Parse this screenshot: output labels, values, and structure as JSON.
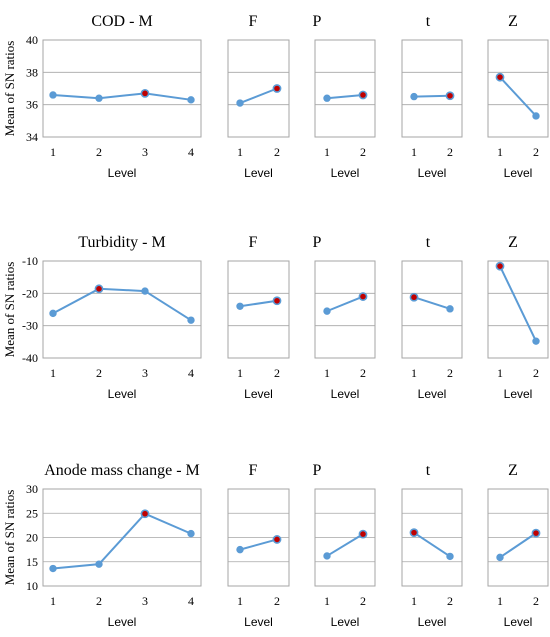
{
  "colors": {
    "line": "#5b9bd5",
    "marker_best": "#c00000",
    "frame": "#a6a6a6",
    "grid": "#a6a6a6"
  },
  "chart_data": [
    {
      "type": "line",
      "ylabel": "Mean of SN ratios",
      "ylim": [
        34,
        40
      ],
      "yticks": [
        "40",
        "38",
        "36",
        "34"
      ],
      "grid": true,
      "panels": [
        {
          "title": "COD - M",
          "xlabel": "Level",
          "categories": [
            "1",
            "2",
            "3",
            "4"
          ],
          "values": [
            36.6,
            36.4,
            36.7,
            36.3
          ],
          "best": 2
        },
        {
          "title": "F",
          "xlabel": "Level",
          "categories": [
            "1",
            "2"
          ],
          "values": [
            36.1,
            37.0
          ],
          "best": 1
        },
        {
          "title": "P",
          "xlabel": "Level",
          "categories": [
            "1",
            "2"
          ],
          "values": [
            36.4,
            36.6
          ],
          "best": 1
        },
        {
          "title": "t",
          "xlabel": "Level",
          "categories": [
            "1",
            "2"
          ],
          "values": [
            36.5,
            36.55
          ],
          "best": 1
        },
        {
          "title": "Z",
          "xlabel": "Level",
          "categories": [
            "1",
            "2"
          ],
          "values": [
            37.7,
            35.3
          ],
          "best": 0
        }
      ]
    },
    {
      "type": "line",
      "ylabel": "Mean of SN ratios",
      "ylim": [
        -40,
        -10
      ],
      "yticks": [
        "-10",
        "-20",
        "-30",
        "-40"
      ],
      "grid": true,
      "panels": [
        {
          "title": "Turbidity - M",
          "xlabel": "Level",
          "categories": [
            "1",
            "2",
            "3",
            "4"
          ],
          "values": [
            -26.2,
            -18.6,
            -19.3,
            -28.3
          ],
          "best": 1
        },
        {
          "title": "F",
          "xlabel": "Level",
          "categories": [
            "1",
            "2"
          ],
          "values": [
            -24.0,
            -22.3
          ],
          "best": 1
        },
        {
          "title": "P",
          "xlabel": "Level",
          "categories": [
            "1",
            "2"
          ],
          "values": [
            -25.5,
            -21.0
          ],
          "best": 1
        },
        {
          "title": "t",
          "xlabel": "Level",
          "categories": [
            "1",
            "2"
          ],
          "values": [
            -21.2,
            -24.8
          ],
          "best": 0
        },
        {
          "title": "Z",
          "xlabel": "Level",
          "categories": [
            "1",
            "2"
          ],
          "values": [
            -11.6,
            -34.8
          ],
          "best": 0
        }
      ]
    },
    {
      "type": "line",
      "ylabel": "Mean of SN ratios",
      "ylim": [
        10,
        30
      ],
      "yticks": [
        "30",
        "25",
        "20",
        "15",
        "10"
      ],
      "grid": true,
      "panels": [
        {
          "title": "Anode mass change - M",
          "xlabel": "Level",
          "categories": [
            "1",
            "2",
            "3",
            "4"
          ],
          "values": [
            13.6,
            14.5,
            24.9,
            20.8
          ],
          "best": 2
        },
        {
          "title": "F",
          "xlabel": "Level",
          "categories": [
            "1",
            "2"
          ],
          "values": [
            17.5,
            19.6
          ],
          "best": 1
        },
        {
          "title": "P",
          "xlabel": "Level",
          "categories": [
            "1",
            "2"
          ],
          "values": [
            16.2,
            20.7
          ],
          "best": 1
        },
        {
          "title": "t",
          "xlabel": "Level",
          "categories": [
            "1",
            "2"
          ],
          "values": [
            21.0,
            16.1
          ],
          "best": 0
        },
        {
          "title": "Z",
          "xlabel": "Level",
          "categories": [
            "1",
            "2"
          ],
          "values": [
            15.9,
            20.9
          ],
          "best": 1
        }
      ]
    }
  ]
}
